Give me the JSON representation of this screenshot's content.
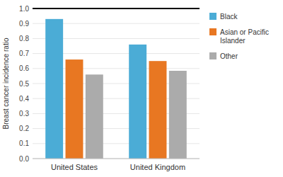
{
  "chart_data": {
    "type": "bar",
    "categories": [
      "United States",
      "United Kingdom"
    ],
    "series": [
      {
        "name": "Black",
        "color": "#4BACD6",
        "values": [
          0.93,
          0.76
        ]
      },
      {
        "name": "Asian or Pacific\nIslander",
        "color": "#E87722",
        "values": [
          0.66,
          0.65
        ]
      },
      {
        "name": "Other",
        "color": "#ABABAB",
        "values": [
          0.56,
          0.585
        ]
      }
    ],
    "ylabel": "Breast cancer incidence ratio",
    "ylim": [
      0,
      1.0
    ],
    "yticks": [
      {
        "value": 0,
        "label": "0.0"
      },
      0.1,
      0.2,
      0.3,
      0.4,
      0.5,
      0.6,
      0.7,
      0.8,
      0.9,
      {
        "value": 1,
        "label": "1.0"
      }
    ],
    "reference_line": 1.0,
    "grid": true,
    "legend": "right"
  }
}
